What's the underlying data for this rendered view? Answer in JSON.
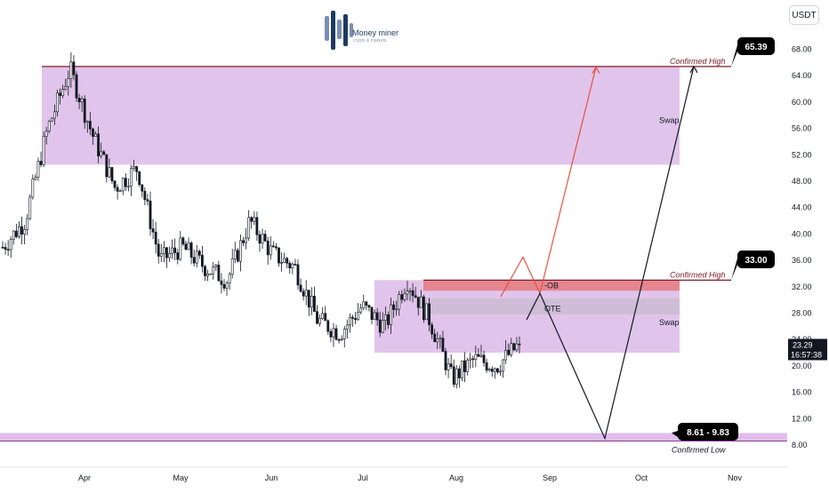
{
  "currency": "USDT",
  "logo": {
    "text": "Money miner",
    "subtext": "crypto & markets"
  },
  "price_axis": {
    "ticks": [
      "68.00",
      "64.00",
      "60.00",
      "56.00",
      "52.00",
      "48.00",
      "44.00",
      "40.00",
      "36.00",
      "32.00",
      "28.00",
      "24.00",
      "20.00",
      "16.00",
      "12.00",
      "8.00"
    ]
  },
  "time_axis": {
    "ticks": [
      "Apr",
      "May",
      "Jun",
      "Jul",
      "Aug",
      "Sep",
      "Oct",
      "Nov"
    ]
  },
  "last_price": {
    "value": "23.29",
    "countdown": "16:57:38"
  },
  "annotations": {
    "confirmed_high_top": "Confirmed High",
    "confirmed_high_mid": "Confirmed High",
    "confirmed_low": "Confirmed Low",
    "swap_top": "Swap",
    "swap_bottom": "Swap",
    "ob": "-OB",
    "ote": "OTE",
    "callout_top": "65.39",
    "callout_mid": "33.00",
    "callout_low": "8.61 - 9.83"
  },
  "colors": {
    "zone": "#d9b3e6",
    "ob": "#e57373",
    "ote": "#b0b0b0",
    "high_line": "#7b1c2a",
    "low_line": "#8e3a9b",
    "up": "#131722",
    "down": "#131722",
    "projection_red": "#e5533d",
    "projection_black": "#131722"
  },
  "chart_data": {
    "type": "candlestick",
    "x_range": [
      "Mar",
      "Nov"
    ],
    "y_range": [
      6,
      70
    ],
    "levels": {
      "confirmed_high_1": 65.39,
      "confirmed_high_2": 33.0,
      "confirmed_low": [
        8.61,
        9.83
      ]
    },
    "zones": [
      {
        "label": "Swap",
        "y_low": 50.5,
        "y_high": 65.3
      },
      {
        "label": "Swap",
        "y_low": 22.0,
        "y_high": 33.0
      },
      {
        "label": "-OB",
        "y_low": 31.4,
        "y_high": 33.0
      },
      {
        "label": "OTE",
        "y_low": 27.8,
        "y_high": 30.2
      }
    ],
    "approx_closes": [
      {
        "date": "Mar",
        "value": 38
      },
      {
        "date": "Mar",
        "value": 42
      },
      {
        "date": "Mar",
        "value": 56
      },
      {
        "date": "Mar",
        "value": 65
      },
      {
        "date": "Apr",
        "value": 55
      },
      {
        "date": "Apr",
        "value": 47
      },
      {
        "date": "Apr",
        "value": 50
      },
      {
        "date": "Apr",
        "value": 36
      },
      {
        "date": "May",
        "value": 38
      },
      {
        "date": "May",
        "value": 35
      },
      {
        "date": "May",
        "value": 33
      },
      {
        "date": "Jun",
        "value": 42
      },
      {
        "date": "Jun",
        "value": 37
      },
      {
        "date": "Jun",
        "value": 35
      },
      {
        "date": "Jul",
        "value": 27
      },
      {
        "date": "Jul",
        "value": 25
      },
      {
        "date": "Jul",
        "value": 29
      },
      {
        "date": "Jul",
        "value": 26
      },
      {
        "date": "Jul",
        "value": 33
      },
      {
        "date": "Aug",
        "value": 27
      },
      {
        "date": "Aug",
        "value": 18
      },
      {
        "date": "Aug",
        "value": 21
      },
      {
        "date": "Aug",
        "value": 20
      },
      {
        "date": "Aug",
        "value": 23.29
      }
    ],
    "projections": [
      {
        "color": "red",
        "path_values": [
          30.5,
          36.5,
          31.0,
          65.3
        ]
      },
      {
        "color": "black",
        "path_values": [
          27.0,
          31.0,
          9.0,
          65.4
        ]
      }
    ],
    "last_price": 23.29
  }
}
